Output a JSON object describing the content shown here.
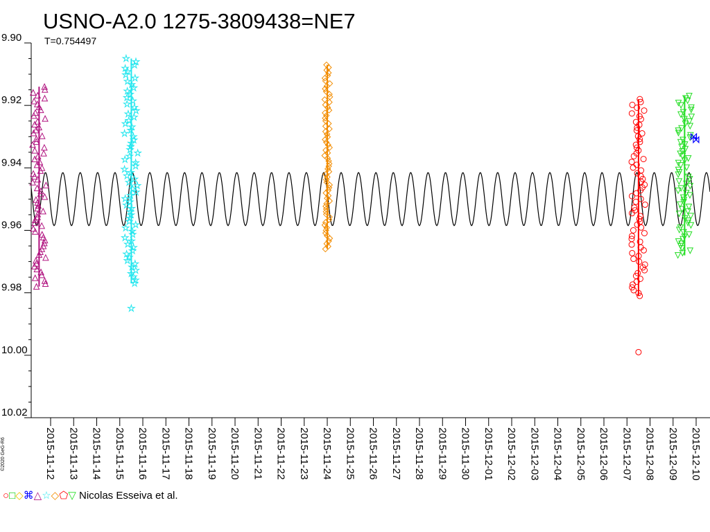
{
  "title": "USNO-A2.0 1275-3809438=NE7",
  "subtitle": "T=0.754497",
  "copyright": "©2020 GeG-R6",
  "legend": {
    "symbols": "○□◇⌘△☆◇⬠▽",
    "text": "Nicolas Esseiva et al."
  },
  "chart_data": {
    "type": "scatter",
    "title": "USNO-A2.0 1275-3809438=NE7",
    "subtitle": "T=0.754497",
    "xlabel": "",
    "ylabel": "",
    "y_inverted": true,
    "ylim": [
      9.9,
      10.02
    ],
    "yticks": [
      "9.90",
      "9.92",
      "9.94",
      "9.96",
      "9.98",
      "10.00",
      "10.02"
    ],
    "xlim": [
      "2015-11-11",
      "2015-12-10"
    ],
    "xticks": [
      "2015-11-12",
      "2015-11-13",
      "2015-11-14",
      "2015-11-15",
      "2015-11-16",
      "2015-11-17",
      "2015-11-18",
      "2015-11-19",
      "2015-11-20",
      "2015-11-21",
      "2015-11-22",
      "2015-11-23",
      "2015-11-24",
      "2015-11-25",
      "2015-11-26",
      "2015-11-27",
      "2015-11-28",
      "2015-11-29",
      "2015-11-30",
      "2015-12-01",
      "2015-12-02",
      "2015-12-03",
      "2015-12-04",
      "2015-12-05",
      "2015-12-06",
      "2015-12-07",
      "2015-12-08",
      "2015-12-09",
      "2015-12-10"
    ],
    "grid": false,
    "model_curve": {
      "type": "sinusoid",
      "period_days": 0.754497,
      "mag_mean": 9.95,
      "amplitude": 0.0085,
      "color": "#000000"
    },
    "series": [
      {
        "symbol": "triangle-up",
        "color": "#b0127f",
        "x": [
          "2015-11-11",
          "2015-11-12"
        ],
        "y_range": [
          9.914,
          9.978
        ],
        "mean": 9.945
      },
      {
        "symbol": "star",
        "color": "#22e6ee",
        "x": [
          "2015-11-15",
          "2015-11-16"
        ],
        "y_range": [
          9.905,
          9.977
        ],
        "mean": 9.949,
        "outliers": [
          9.985
        ]
      },
      {
        "symbol": "diamond",
        "color": "#f28c00",
        "x": [
          "2015-11-24"
        ],
        "y_range": [
          9.907,
          9.966
        ],
        "mean": 9.94
      },
      {
        "symbol": "circle-pentagon",
        "color": "#ff0000",
        "x": [
          "2015-12-07",
          "2015-12-08"
        ],
        "y_range": [
          9.918,
          9.981
        ],
        "mean": 9.95,
        "outliers": [
          9.999
        ]
      },
      {
        "symbol": "triangle-down",
        "color": "#22dd22",
        "x": [
          "2015-12-09",
          "2015-12-10"
        ],
        "y_range": [
          9.917,
          9.968
        ],
        "mean": 9.945
      },
      {
        "symbol": "bowtie",
        "color": "#0000ff",
        "x": [
          "2015-12-10"
        ],
        "y_range": [
          9.93,
          9.931
        ],
        "mean": 9.93
      }
    ]
  }
}
